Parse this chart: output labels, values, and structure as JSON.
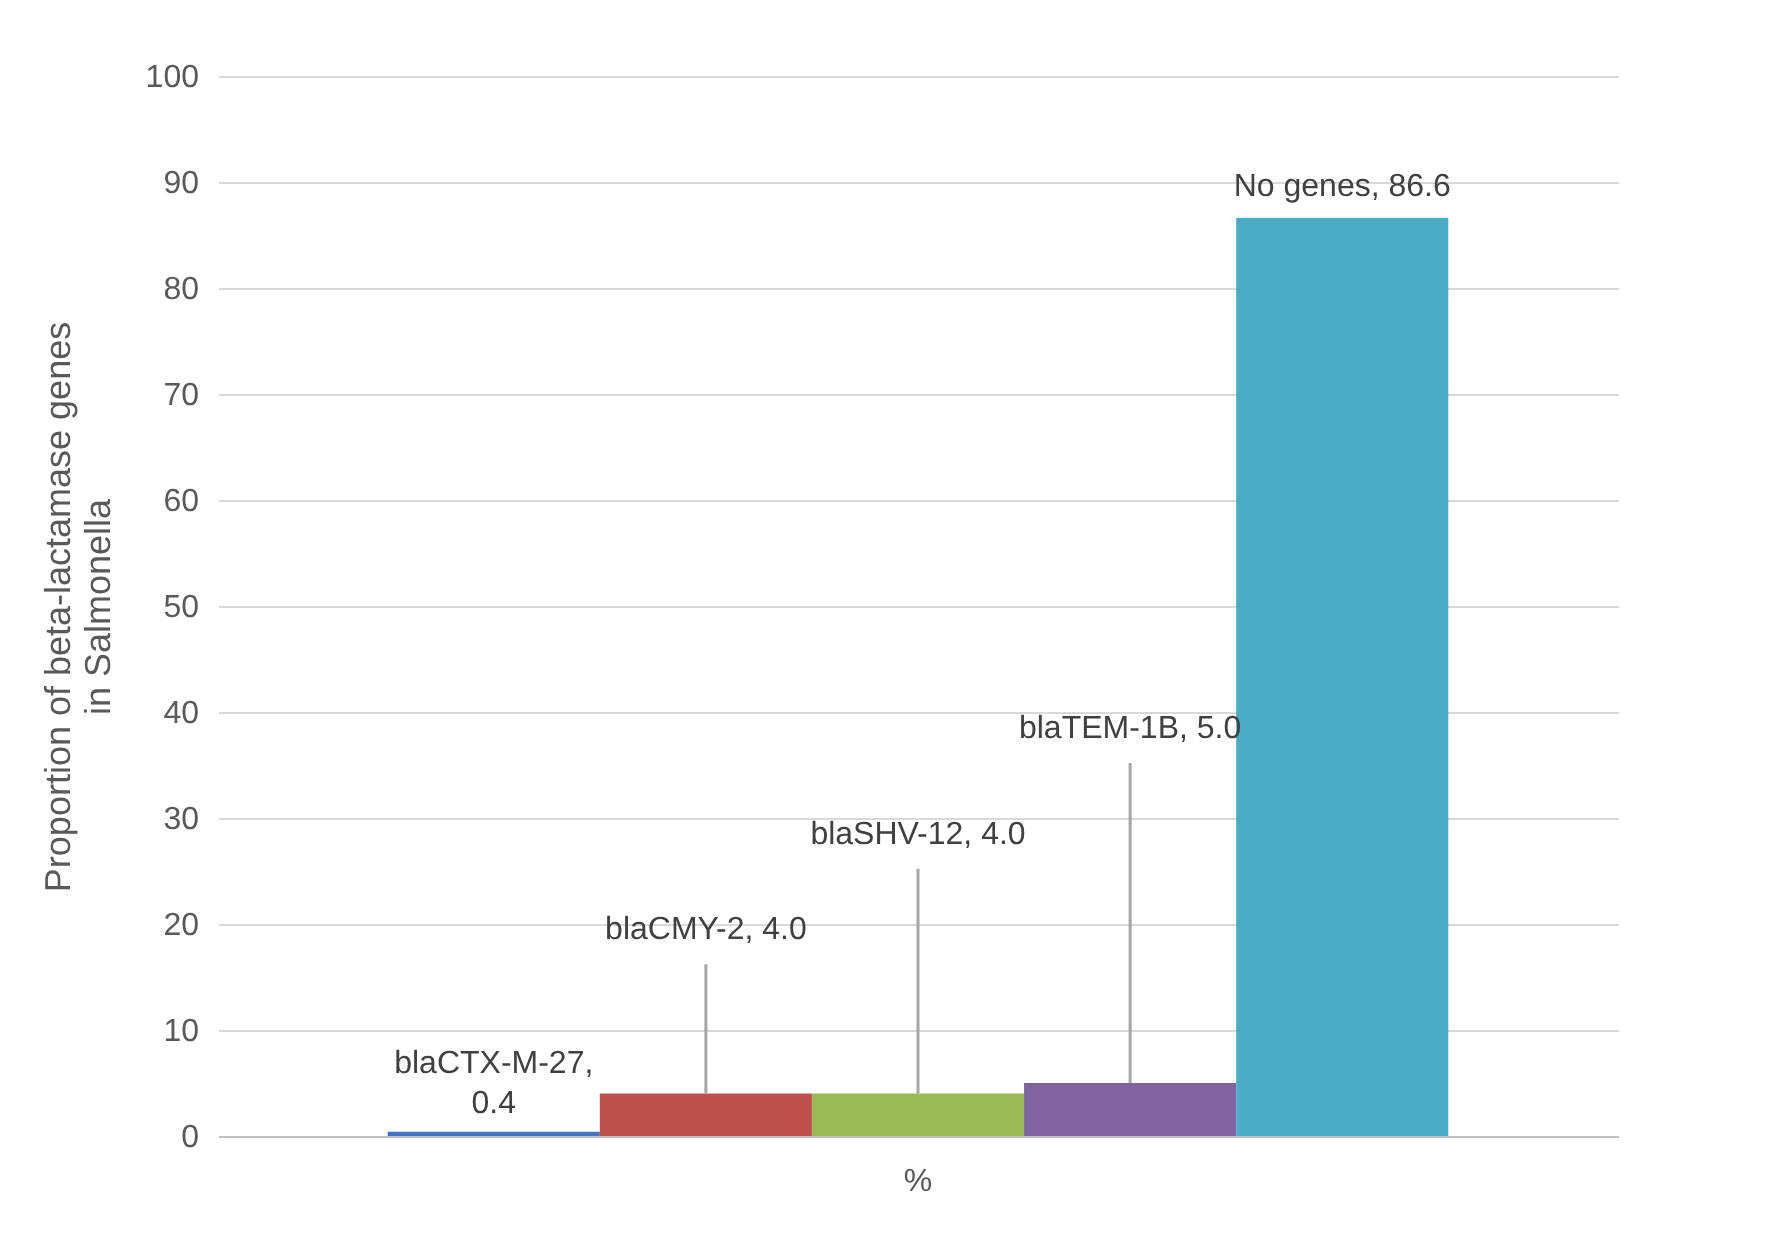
{
  "chart_data": {
    "type": "bar",
    "ylabel": "Proportion of beta-lactamase genes in Salmonella",
    "categories": [
      "%"
    ],
    "series": [
      {
        "color": "#4472c4",
        "values": [
          0.4
        ],
        "value_labels": [
          "blaCTX-M-27, 0.4"
        ]
      },
      {
        "color": "#c0504d",
        "values": [
          4.0
        ],
        "value_labels": [
          "blaCMY-2, 4.0"
        ]
      },
      {
        "color": "#9bbb59",
        "values": [
          4.0
        ],
        "value_labels": [
          "blaSHV-12, 4.0"
        ]
      },
      {
        "color": "#8064a2",
        "values": [
          5.0
        ],
        "value_labels": [
          "blaTEM-1B, 5.0"
        ]
      },
      {
        "color": "#4bacc6",
        "values": [
          86.6
        ],
        "value_labels": [
          "No genes, 86.6"
        ]
      }
    ],
    "ylim": [
      0,
      100
    ],
    "yticks": [
      0,
      10,
      20,
      30,
      40,
      50,
      60,
      70,
      80,
      90,
      100
    ],
    "grid": "y",
    "legend": false
  }
}
